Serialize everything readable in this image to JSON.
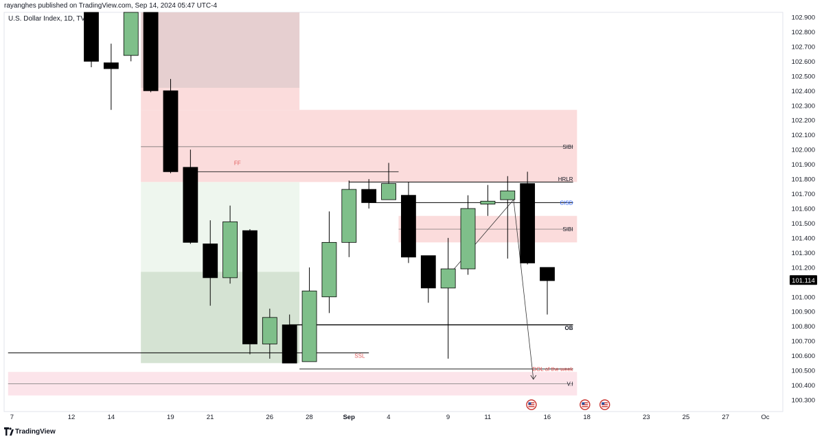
{
  "header": {
    "published_by": "rayanghes published on TradingView.com, Sep 14, 2024 05:47 UTC-4",
    "symbol": "U.S. Dollar Index, 1D, TVC"
  },
  "footer": {
    "brand": "TradingView"
  },
  "colors": {
    "bull": "#7fbf8a",
    "bear": "#000000",
    "zone_red": "#fbdcdc",
    "zone_red_dark": "#e6cfd0",
    "zone_green": "#eef6ee",
    "zone_green_dark": "#d5e3d3",
    "zone_pink_low": "#fce4ea",
    "label_red": "#e05a5a",
    "label_blue": "#2962ff",
    "price_badge": "#000000"
  },
  "chart_data": {
    "type": "candlestick",
    "y_axis": {
      "range": [
        100.22,
        102.96
      ],
      "ticks": [
        "102.900",
        "102.800",
        "102.700",
        "102.600",
        "102.500",
        "102.400",
        "102.300",
        "102.200",
        "102.100",
        "102.000",
        "101.900",
        "101.800",
        "101.700",
        "101.600",
        "101.500",
        "101.400",
        "101.300",
        "101.200",
        "101.100",
        "101.000",
        "100.900",
        "100.800",
        "100.700",
        "100.600",
        "100.500",
        "100.400",
        "100.300"
      ],
      "last_price": "101.114"
    },
    "x_axis": {
      "ticks": [
        {
          "label": "7",
          "idx": -3
        },
        {
          "label": "12",
          "idx": 0
        },
        {
          "label": "14",
          "idx": 2
        },
        {
          "label": "19",
          "idx": 5
        },
        {
          "label": "21",
          "idx": 7
        },
        {
          "label": "26",
          "idx": 10
        },
        {
          "label": "28",
          "idx": 12
        },
        {
          "label": "Sep",
          "idx": 14
        },
        {
          "label": "4",
          "idx": 16
        },
        {
          "label": "9",
          "idx": 19
        },
        {
          "label": "11",
          "idx": 21
        },
        {
          "label": "16",
          "idx": 24
        },
        {
          "label": "18",
          "idx": 26
        },
        {
          "label": "23",
          "idx": 29
        },
        {
          "label": "25",
          "idx": 31
        },
        {
          "label": "27",
          "idx": 33
        },
        {
          "label": "Oc",
          "idx": 35
        }
      ]
    },
    "candles": [
      {
        "o": 103.15,
        "h": 103.4,
        "l": 102.56,
        "c": 102.6
      },
      {
        "o": 102.59,
        "h": 102.72,
        "l": 102.27,
        "c": 102.55
      },
      {
        "o": 102.64,
        "h": 103.2,
        "l": 102.6,
        "c": 103.1
      },
      {
        "o": 103.08,
        "h": 103.15,
        "l": 102.39,
        "c": 102.4
      },
      {
        "o": 102.4,
        "h": 102.48,
        "l": 101.84,
        "c": 101.85
      },
      {
        "o": 101.88,
        "h": 102.0,
        "l": 101.36,
        "c": 101.37
      },
      {
        "o": 101.36,
        "h": 101.52,
        "l": 100.94,
        "c": 101.13
      },
      {
        "o": 101.13,
        "h": 101.62,
        "l": 101.09,
        "c": 101.51
      },
      {
        "o": 101.45,
        "h": 101.46,
        "l": 100.61,
        "c": 100.68
      },
      {
        "o": 100.68,
        "h": 100.92,
        "l": 100.58,
        "c": 100.86
      },
      {
        "o": 100.81,
        "h": 100.88,
        "l": 100.55,
        "c": 100.55
      },
      {
        "o": 100.56,
        "h": 101.2,
        "l": 100.56,
        "c": 101.04
      },
      {
        "o": 101.0,
        "h": 101.58,
        "l": 100.89,
        "c": 101.37
      },
      {
        "o": 101.37,
        "h": 101.79,
        "l": 101.27,
        "c": 101.73
      },
      {
        "o": 101.73,
        "h": 101.8,
        "l": 101.6,
        "c": 101.64
      },
      {
        "o": 101.66,
        "h": 101.91,
        "l": 101.66,
        "c": 101.77
      },
      {
        "o": 101.69,
        "h": 101.78,
        "l": 101.23,
        "c": 101.27
      },
      {
        "o": 101.28,
        "h": 101.28,
        "l": 100.96,
        "c": 101.06
      },
      {
        "o": 101.06,
        "h": 101.4,
        "l": 100.58,
        "c": 101.19
      },
      {
        "o": 101.19,
        "h": 101.69,
        "l": 101.15,
        "c": 101.6
      },
      {
        "o": 101.63,
        "h": 101.76,
        "l": 101.55,
        "c": 101.65
      },
      {
        "o": 101.66,
        "h": 101.82,
        "l": 101.26,
        "c": 101.72
      },
      {
        "o": 101.77,
        "h": 101.85,
        "l": 101.22,
        "c": 101.23
      },
      {
        "o": 101.2,
        "h": 101.18,
        "l": 100.88,
        "c": 101.11
      }
    ],
    "zones": [
      {
        "name": "upper-dark-red",
        "i1": 2.5,
        "i2": 10.5,
        "top": 103.0,
        "bottom": 102.42,
        "color": "zone_red_dark"
      },
      {
        "name": "upper-light-red",
        "i1": 2.5,
        "i2": 10.5,
        "top": 102.42,
        "bottom": 102.27,
        "color": "zone_red"
      },
      {
        "name": "sibi-upper",
        "i1": 2.5,
        "i2": 24.5,
        "top": 102.27,
        "bottom": 101.78,
        "color": "zone_red"
      },
      {
        "name": "green-light",
        "i1": 2.5,
        "i2": 10.5,
        "top": 101.78,
        "bottom": 101.17,
        "color": "zone_green"
      },
      {
        "name": "green-dark",
        "i1": 2.5,
        "i2": 10.5,
        "top": 101.17,
        "bottom": 100.55,
        "color": "zone_green_dark"
      },
      {
        "name": "sibi-mid",
        "i1": 15.5,
        "i2": 24.5,
        "top": 101.55,
        "bottom": 101.37,
        "color": "zone_red"
      },
      {
        "name": "vi-low",
        "i1": -4.2,
        "i2": 24.5,
        "top": 100.49,
        "bottom": 100.33,
        "color": "zone_pink_low"
      }
    ],
    "lines": [
      {
        "name": "sibi-upper-line",
        "i1": 2.5,
        "i2": 24.3,
        "y": 102.02,
        "color": "#666666",
        "width": 0.7
      },
      {
        "name": "ff-line",
        "i1": 5,
        "i2": 15.5,
        "y": 101.85,
        "color": "#333333",
        "width": 1
      },
      {
        "name": "hrlr-line",
        "i1": 13,
        "i2": 24.3,
        "y": 101.78,
        "color": "#000000",
        "width": 1
      },
      {
        "name": "cisd-line",
        "i1": 14,
        "i2": 24.3,
        "y": 101.64,
        "color": "#000000",
        "width": 1
      },
      {
        "name": "sibi-mid-line",
        "i1": 15.5,
        "i2": 24.3,
        "y": 101.46,
        "color": "#666666",
        "width": 0.7
      },
      {
        "name": "ob-line",
        "i1": 10,
        "i2": 24.3,
        "y": 100.81,
        "color": "#000000",
        "width": 1.3
      },
      {
        "name": "ssl-line",
        "i1": -4.2,
        "i2": 14,
        "y": 100.62,
        "color": "#000000",
        "width": 1
      },
      {
        "name": "dol-line",
        "i1": 10.5,
        "i2": 24.3,
        "y": 100.51,
        "color": "#000000",
        "width": 0.8
      },
      {
        "name": "vi-line",
        "i1": -4.2,
        "i2": 24.3,
        "y": 100.41,
        "color": "#777777",
        "width": 0.7
      }
    ],
    "trend_lines": [
      {
        "name": "cisd-trend",
        "i1": 18.3,
        "p1": 101.19,
        "i2": 21.3,
        "p2": 101.66
      }
    ],
    "arrows": [
      {
        "name": "dol-arrow",
        "i1": 21.3,
        "p1": 101.66,
        "i2": 22.3,
        "p2": 100.44
      }
    ],
    "annotations": [
      {
        "name": "sibi-upper-label",
        "text": "SIBI",
        "i": 24.3,
        "y": 102.02,
        "color": "#131722",
        "align": "end"
      },
      {
        "name": "ff-label",
        "text": "FF",
        "i": 7.2,
        "y": 101.91,
        "color": "label_red",
        "align": "start"
      },
      {
        "name": "hrlr-label",
        "text": "HRLR",
        "i": 24.3,
        "y": 101.8,
        "color": "#131722",
        "align": "end"
      },
      {
        "name": "cisd-label",
        "text": "CISD",
        "i": 24.3,
        "y": 101.64,
        "color": "label_blue",
        "align": "end"
      },
      {
        "name": "sibi-mid-label",
        "text": "SIBI",
        "i": 24.3,
        "y": 101.46,
        "color": "#131722",
        "align": "end"
      },
      {
        "name": "ob-label",
        "text": "OB",
        "i": 24.3,
        "y": 100.79,
        "color": "#131722",
        "align": "end",
        "bold": true
      },
      {
        "name": "ssl-label",
        "text": "SSL",
        "i": 13.8,
        "y": 100.6,
        "color": "label_red",
        "align": "end"
      },
      {
        "name": "dol-label",
        "text": "DOL of the week",
        "i": 24.3,
        "y": 100.51,
        "color": "label_red",
        "align": "end"
      },
      {
        "name": "vi-label",
        "text": "V.I",
        "i": 24.3,
        "y": 100.41,
        "color": "#131722",
        "align": "end"
      }
    ],
    "event_markers": [
      22.2,
      24.9,
      25.9
    ]
  }
}
